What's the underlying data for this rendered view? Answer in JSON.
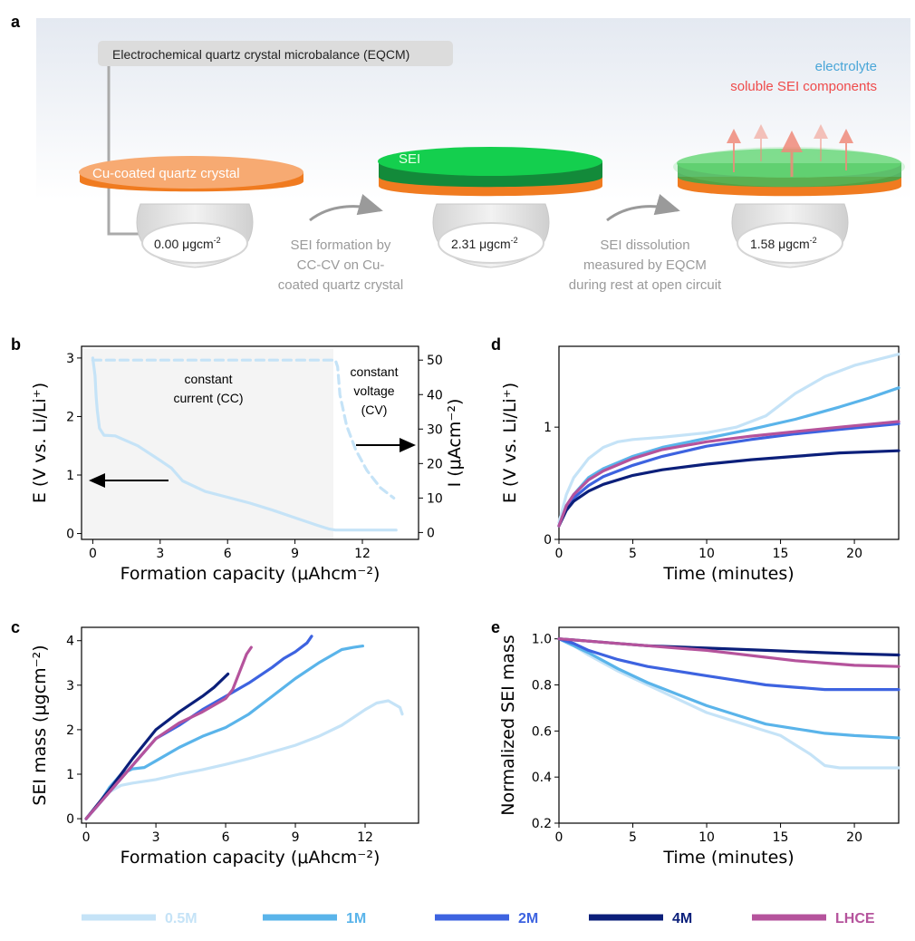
{
  "panel_a": {
    "letter": "a",
    "eqcm_label": "Electrochemical quartz crystal microbalance (EQCM)",
    "legend_electrolyte": "electrolyte",
    "legend_soluble": "soluble SEI components",
    "crystal_label": "Cu-coated quartz crystal",
    "sei_label": "SEI",
    "mass1": "0.00 μgcm",
    "mass2": "2.31 μgcm",
    "mass3": "1.58 μgcm",
    "mass_exp": "-2",
    "step1": [
      "SEI formation by",
      "CC-CV on Cu-",
      "coated quartz crystal"
    ],
    "step2": [
      "SEI dissolution",
      "measured by EQCM",
      "during rest at open circuit"
    ]
  },
  "colors": {
    "c05": "#c5e3f7",
    "c1": "#5ab4ea",
    "c2": "#3d63e0",
    "c4": "#0b1f7a",
    "lhce": "#b5539c"
  },
  "legend": [
    "0.5M",
    "1M",
    "2M",
    "4M",
    "LHCE"
  ],
  "chart_data": [
    {
      "panel": "b",
      "type": "line",
      "xlabel": "Formation capacity (μAhcm⁻²)",
      "ylabel": "E (V vs. Li/Li⁺)",
      "y2label": "I (μAcm⁻²)",
      "xlim": [
        -0.5,
        14.5
      ],
      "ylim": [
        -0.1,
        3.2
      ],
      "y2lim": [
        -2,
        54
      ],
      "xticks": [
        "0",
        "3",
        "6",
        "9",
        "12"
      ],
      "yticks": [
        "0",
        "1",
        "2",
        "3"
      ],
      "y2ticks": [
        "0",
        "10",
        "20",
        "30",
        "40",
        "50"
      ],
      "annotations": [
        "constant",
        "current (CC)",
        "constant",
        "voltage",
        "(CV)"
      ],
      "series": [
        {
          "axis": "left",
          "style": "solid",
          "x": [
            0,
            0.1,
            0.15,
            0.2,
            0.3,
            0.5,
            1,
            2,
            3,
            3.5,
            4,
            5,
            6,
            7,
            8,
            9,
            10,
            10.5,
            10.8,
            11,
            12,
            13,
            13.5
          ],
          "y": [
            3.0,
            2.7,
            2.35,
            2.1,
            1.8,
            1.68,
            1.67,
            1.5,
            1.25,
            1.12,
            0.9,
            0.72,
            0.62,
            0.52,
            0.4,
            0.27,
            0.14,
            0.08,
            0.06,
            0.06,
            0.06,
            0.06,
            0.06
          ]
        },
        {
          "axis": "right",
          "style": "dashed",
          "x": [
            0,
            10.8,
            10.9,
            11,
            11.3,
            11.7,
            12.2,
            12.8,
            13.4
          ],
          "y": [
            50,
            50,
            48,
            40,
            31,
            24,
            18,
            13,
            10
          ]
        }
      ]
    },
    {
      "panel": "c",
      "type": "line",
      "xlabel": "Formation capacity (μAhcm⁻²)",
      "ylabel": "SEI mass (μgcm⁻²)",
      "xlim": [
        -0.2,
        14.3
      ],
      "ylim": [
        -0.1,
        4.3
      ],
      "xticks": [
        "0",
        "3",
        "6",
        "9",
        "12"
      ],
      "yticks": [
        "0",
        "1",
        "2",
        "3",
        "4"
      ],
      "series": [
        {
          "name": "0.5M",
          "x": [
            0,
            0.5,
            1,
            1.5,
            2,
            3,
            4,
            5,
            6,
            7,
            8,
            9,
            10,
            11,
            12,
            12.5,
            13,
            13.5,
            13.6
          ],
          "y": [
            0,
            0.3,
            0.6,
            0.75,
            0.8,
            0.88,
            1.0,
            1.1,
            1.22,
            1.35,
            1.5,
            1.65,
            1.85,
            2.1,
            2.45,
            2.6,
            2.65,
            2.5,
            2.35
          ]
        },
        {
          "name": "1M",
          "x": [
            0,
            0.5,
            1,
            1.5,
            2,
            2.5,
            3,
            4,
            5,
            6,
            7,
            8,
            9,
            10,
            11,
            11.5,
            11.9
          ],
          "y": [
            0,
            0.3,
            0.7,
            1.0,
            1.12,
            1.15,
            1.3,
            1.6,
            1.85,
            2.05,
            2.35,
            2.75,
            3.15,
            3.5,
            3.8,
            3.85,
            3.88
          ]
        },
        {
          "name": "2M",
          "x": [
            0,
            1,
            2,
            3,
            4,
            5,
            6,
            7,
            8,
            8.5,
            9,
            9.5,
            9.7
          ],
          "y": [
            0,
            0.6,
            1.2,
            1.8,
            2.1,
            2.45,
            2.75,
            3.05,
            3.4,
            3.6,
            3.75,
            3.95,
            4.1
          ]
        },
        {
          "name": "4M",
          "x": [
            0,
            1,
            2,
            3,
            4,
            5,
            5.5,
            6.1
          ],
          "y": [
            0,
            0.65,
            1.35,
            2.0,
            2.4,
            2.75,
            2.95,
            3.25
          ]
        },
        {
          "name": "LHCE",
          "x": [
            0,
            1,
            2,
            3,
            4,
            5,
            6,
            6.3,
            6.6,
            6.9,
            7.1
          ],
          "y": [
            0,
            0.6,
            1.2,
            1.8,
            2.15,
            2.4,
            2.7,
            2.9,
            3.3,
            3.7,
            3.85
          ]
        }
      ]
    },
    {
      "panel": "d",
      "type": "line",
      "xlabel": "Time (minutes)",
      "ylabel": "E (V vs. Li/Li⁺)",
      "xlim": [
        0,
        23
      ],
      "ylim": [
        0,
        1.72
      ],
      "xticks": [
        "0",
        "5",
        "10",
        "15",
        "20"
      ],
      "yticks": [
        "0",
        "1"
      ],
      "series": [
        {
          "name": "0.5M",
          "x": [
            0,
            0.5,
            1,
            2,
            3,
            4,
            5,
            7,
            10,
            12,
            14,
            16,
            18,
            20,
            23
          ],
          "y": [
            0.15,
            0.4,
            0.55,
            0.72,
            0.82,
            0.87,
            0.89,
            0.91,
            0.95,
            1.0,
            1.1,
            1.3,
            1.45,
            1.55,
            1.65
          ]
        },
        {
          "name": "1M",
          "x": [
            0,
            0.5,
            1,
            2,
            3,
            5,
            7,
            10,
            13,
            16,
            19,
            21,
            23
          ],
          "y": [
            0.12,
            0.3,
            0.4,
            0.55,
            0.63,
            0.74,
            0.82,
            0.9,
            0.98,
            1.07,
            1.18,
            1.26,
            1.35
          ]
        },
        {
          "name": "2M",
          "x": [
            0,
            0.5,
            1,
            2,
            3,
            5,
            7,
            10,
            13,
            16,
            19,
            23
          ],
          "y": [
            0.12,
            0.28,
            0.37,
            0.48,
            0.56,
            0.66,
            0.74,
            0.83,
            0.89,
            0.94,
            0.98,
            1.03
          ]
        },
        {
          "name": "4M",
          "x": [
            0,
            0.5,
            1,
            2,
            3,
            5,
            7,
            10,
            13,
            16,
            19,
            23
          ],
          "y": [
            0.12,
            0.26,
            0.34,
            0.43,
            0.49,
            0.57,
            0.62,
            0.67,
            0.71,
            0.74,
            0.77,
            0.79
          ]
        },
        {
          "name": "LHCE",
          "x": [
            0,
            0.5,
            1,
            2,
            3,
            5,
            7,
            10,
            13,
            16,
            19,
            23
          ],
          "y": [
            0.12,
            0.3,
            0.4,
            0.53,
            0.61,
            0.72,
            0.8,
            0.87,
            0.92,
            0.96,
            1.0,
            1.05
          ]
        }
      ]
    },
    {
      "panel": "e",
      "type": "line",
      "xlabel": "Time (minutes)",
      "ylabel": "Normalized SEI mass",
      "xlim": [
        0,
        23
      ],
      "ylim": [
        0.2,
        1.05
      ],
      "xticks": [
        "0",
        "5",
        "10",
        "15",
        "20"
      ],
      "yticks": [
        "0.2",
        "0.4",
        "0.6",
        "0.8",
        "1.0"
      ],
      "series": [
        {
          "name": "0.5M",
          "x": [
            0,
            1,
            2,
            4,
            6,
            8,
            10,
            12,
            14,
            15,
            16,
            17,
            18,
            19,
            20,
            23
          ],
          "y": [
            1.0,
            0.97,
            0.93,
            0.86,
            0.8,
            0.74,
            0.68,
            0.64,
            0.6,
            0.58,
            0.54,
            0.5,
            0.45,
            0.44,
            0.44,
            0.44
          ]
        },
        {
          "name": "1M",
          "x": [
            0,
            1,
            2,
            4,
            6,
            8,
            10,
            12,
            14,
            16,
            18,
            20,
            23
          ],
          "y": [
            1.0,
            0.97,
            0.94,
            0.87,
            0.81,
            0.76,
            0.71,
            0.67,
            0.63,
            0.61,
            0.59,
            0.58,
            0.57
          ]
        },
        {
          "name": "2M",
          "x": [
            0,
            1,
            2,
            4,
            6,
            8,
            10,
            12,
            14,
            16,
            18,
            20,
            23
          ],
          "y": [
            1.0,
            0.98,
            0.95,
            0.91,
            0.88,
            0.86,
            0.84,
            0.82,
            0.8,
            0.79,
            0.78,
            0.78,
            0.78
          ]
        },
        {
          "name": "4M",
          "x": [
            0,
            2,
            4,
            6,
            8,
            10,
            12,
            14,
            16,
            18,
            20,
            23
          ],
          "y": [
            1.0,
            0.99,
            0.98,
            0.97,
            0.965,
            0.96,
            0.955,
            0.95,
            0.945,
            0.94,
            0.935,
            0.93
          ]
        },
        {
          "name": "LHCE",
          "x": [
            0,
            2,
            4,
            6,
            8,
            10,
            12,
            14,
            16,
            18,
            20,
            23
          ],
          "y": [
            1.0,
            0.99,
            0.98,
            0.97,
            0.96,
            0.95,
            0.935,
            0.92,
            0.905,
            0.895,
            0.885,
            0.88
          ]
        }
      ]
    }
  ]
}
